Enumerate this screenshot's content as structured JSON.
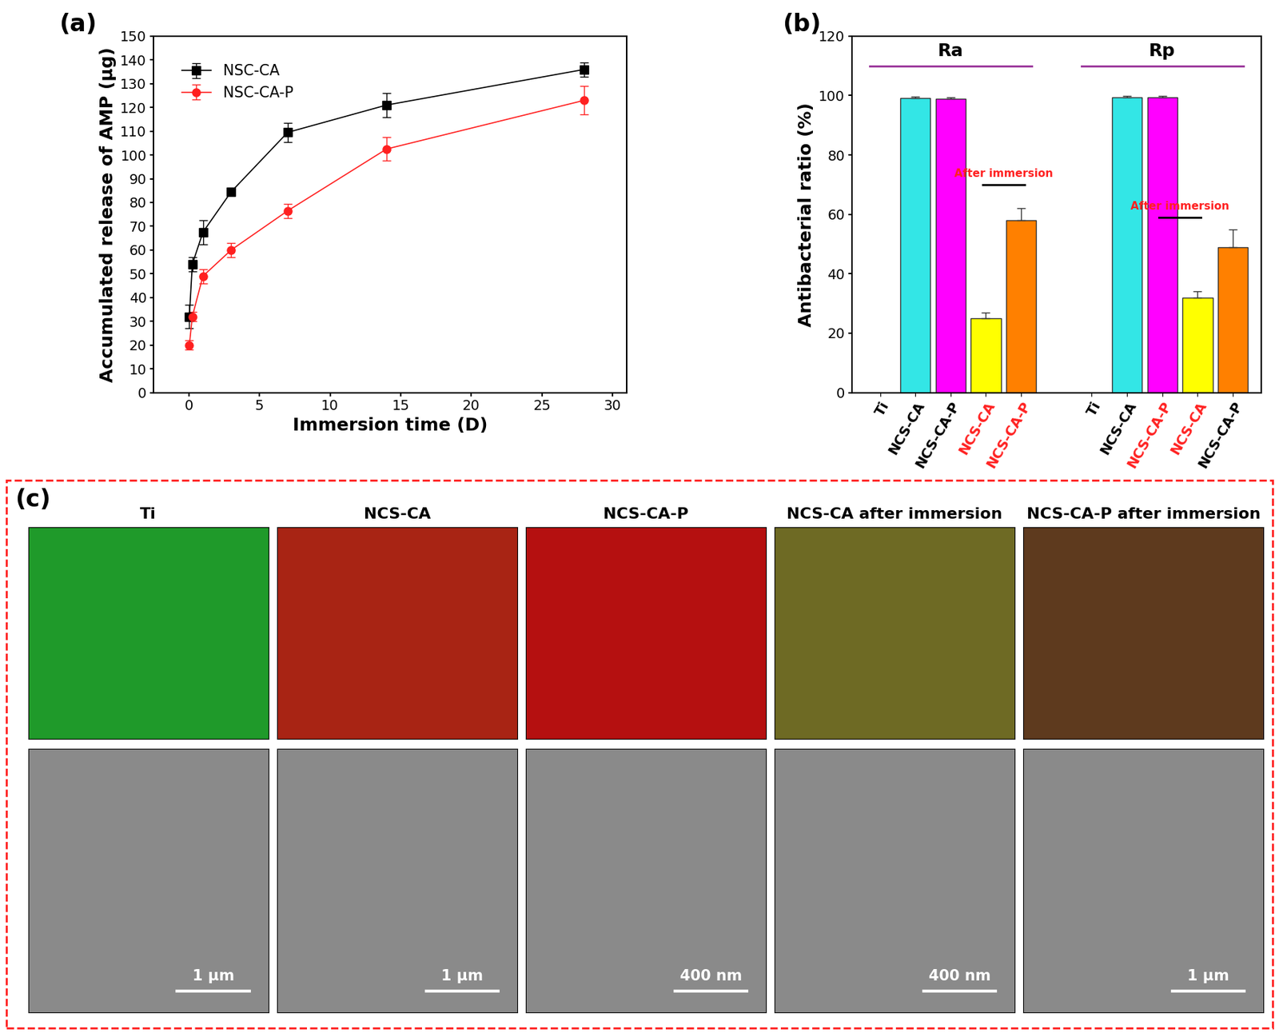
{
  "chart_data": [
    {
      "type": "line",
      "panel_label": "(a)",
      "x_label": "Immersion time (D)",
      "y_label": "Accumulated release of AMP (μg)",
      "xlim": [
        -2.5,
        31
      ],
      "xticks": [
        0,
        5,
        10,
        15,
        20,
        25,
        30
      ],
      "ylim": [
        0,
        150
      ],
      "yticks": [
        0,
        10,
        20,
        30,
        40,
        50,
        60,
        70,
        80,
        90,
        100,
        110,
        120,
        130,
        140,
        150
      ],
      "legend": "upper left",
      "series": [
        {
          "name": "NSC-CA",
          "color": "#000000",
          "marker": "s",
          "line_style": "solid",
          "x": [
            0.04,
            0.25,
            1,
            3,
            7,
            14,
            28
          ],
          "values": [
            32,
            54,
            67.5,
            84.5,
            109.5,
            121,
            136
          ],
          "errors": [
            5,
            3,
            5,
            1.5,
            4,
            5,
            3
          ]
        },
        {
          "name": "NSC-CA-P",
          "color": "#ff2020",
          "marker": "o",
          "line_style": "solid",
          "x": [
            0.04,
            0.25,
            1,
            3,
            7,
            14,
            28
          ],
          "values": [
            20,
            32,
            49,
            60,
            76.5,
            102.5,
            123
          ],
          "errors": [
            2,
            2,
            3,
            3,
            3,
            5,
            6
          ]
        }
      ]
    },
    {
      "type": "bar",
      "panel_label": "(b)",
      "y_label": "Antibacterial ratio (%)",
      "ylim": [
        0,
        120
      ],
      "yticks": [
        0,
        20,
        40,
        60,
        80,
        100,
        120
      ],
      "categories": [
        "Ti",
        "NCS-CA",
        "NCS-CA-P",
        "NCS-CA",
        "NCS-CA-P",
        null,
        "Ti",
        "NCS-CA",
        "NCS-CA-P",
        "NCS-CA",
        "NCS-CA-P"
      ],
      "values": [
        0,
        99.2,
        99.0,
        25,
        58,
        null,
        0,
        99.3,
        99.3,
        32,
        49
      ],
      "errors": [
        0,
        0.5,
        0.3,
        2,
        4,
        null,
        0,
        0.6,
        0.6,
        2,
        6
      ],
      "colors": [
        "#808080",
        "#33e6e6",
        "#ff00ff",
        "#ffff00",
        "#ff8000",
        "#ffffff",
        "#808080",
        "#33e6e6",
        "#ff00ff",
        "#ffff00",
        "#ff8000"
      ],
      "annotations": [
        "Ra",
        "Rp",
        "After immersion",
        "After immersion"
      ]
    }
  ],
  "panel_c": {
    "label": "(c)",
    "columns": [
      {
        "title": "Ti",
        "scale_bar": "1 μm"
      },
      {
        "title": "NCS-CA",
        "scale_bar": "1 μm"
      },
      {
        "title": "NCS-CA-P",
        "scale_bar": "400 nm"
      },
      {
        "title": "NCS-CA after immersion",
        "scale_bar": "400 nm"
      },
      {
        "title": "NCS-CA-P after immersion",
        "scale_bar": "1 μm"
      }
    ]
  }
}
